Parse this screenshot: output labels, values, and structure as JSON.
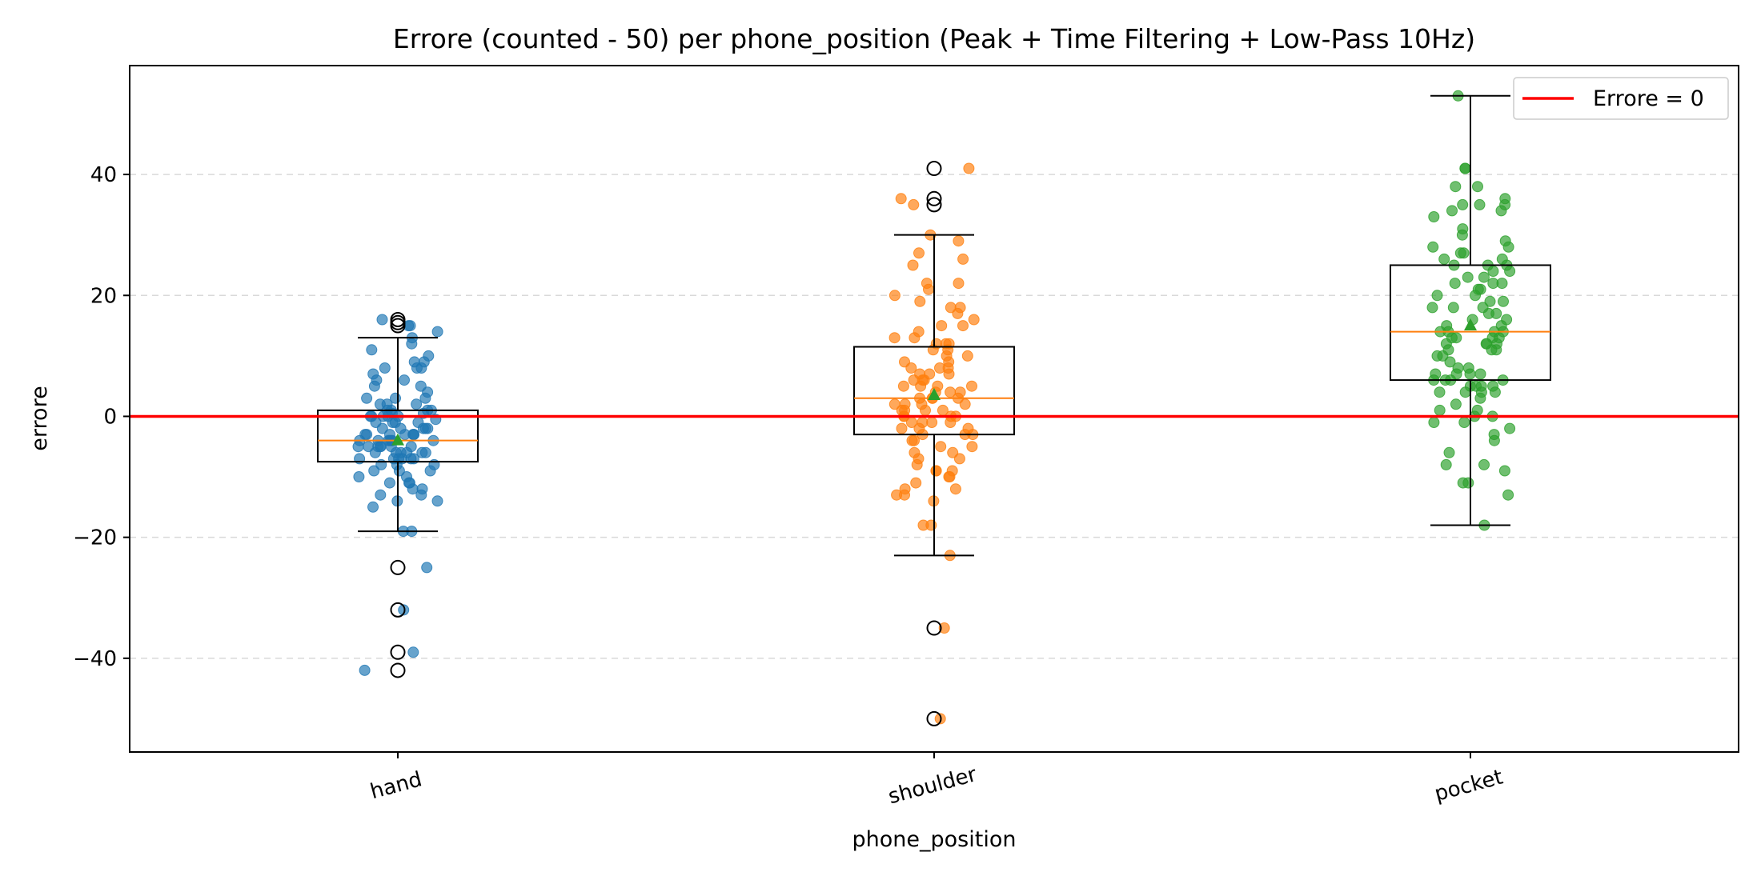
{
  "chart_data": {
    "type": "box",
    "title": "Errore (counted - 50) per phone_position (Peak + Time Filtering + Low-Pass 10Hz)",
    "xlabel": "phone_position",
    "ylabel": "errore",
    "ylim": [
      -55.5,
      58
    ],
    "yticks": [
      -40,
      -20,
      0,
      20,
      40
    ],
    "yticklabels": [
      "−40",
      "−20",
      "0",
      "20",
      "40"
    ],
    "xticklabel_rotation_deg": -15,
    "grid": "y, dashed, light gray",
    "legend": {
      "placement": "top-right",
      "entries": [
        {
          "label": "Errore = 0",
          "color": "#ff0000"
        }
      ]
    },
    "reference_line": {
      "y": 0,
      "color": "#ff0000",
      "label": "Errore = 0"
    },
    "categories": [
      "hand",
      "shoulder",
      "pocket"
    ],
    "series": [
      {
        "name": "hand",
        "color": "#1f77b4",
        "box": {
          "whisker_low": -19,
          "q1": -7.5,
          "median": -4,
          "q3": 1,
          "whisker_high": 13,
          "mean": -4
        },
        "outliers": [
          16,
          15,
          15.5,
          -25,
          -32,
          -39,
          -42
        ],
        "points": [
          15,
          16,
          15,
          14,
          13,
          12,
          11,
          10,
          9,
          9,
          8,
          8,
          8,
          7,
          6,
          6,
          5,
          5,
          4,
          3,
          3,
          3,
          2,
          2,
          2,
          1,
          1,
          1,
          1,
          0.5,
          0.5,
          0,
          0,
          0,
          0,
          0,
          -0.5,
          -1,
          -1,
          -1,
          -1,
          -2,
          -2,
          -2,
          -2,
          -2,
          -3,
          -3,
          -3,
          -3,
          -3,
          -3,
          -3,
          -4,
          -4,
          -4,
          -4,
          -4,
          -4,
          -4,
          -5,
          -5,
          -5,
          -5,
          -5,
          -5,
          -5,
          -6,
          -6,
          -6,
          -6,
          -6,
          -6,
          -7,
          -7,
          -7,
          -7,
          -7,
          -7,
          -8,
          -8,
          -8,
          -9,
          -9,
          -9,
          -10,
          -10,
          -11,
          -11,
          -11,
          -12,
          -12,
          -13,
          -13,
          -14,
          -14,
          -15,
          -19,
          -19,
          -25,
          -32,
          -39,
          -42
        ]
      },
      {
        "name": "shoulder",
        "color": "#ff7f0e",
        "box": {
          "whisker_low": -23,
          "q1": -3,
          "median": 3,
          "q3": 11.5,
          "whisker_high": 30,
          "mean": 3.5
        },
        "outliers": [
          41,
          36,
          35,
          -35,
          -50
        ],
        "points": [
          41,
          36,
          35,
          30,
          29,
          27,
          26,
          25,
          22,
          22,
          21,
          20,
          19,
          18,
          18,
          17,
          16,
          15,
          15,
          14,
          13,
          13,
          12,
          12,
          12,
          11,
          11,
          10,
          10,
          9,
          9,
          8,
          8,
          8,
          7,
          7,
          7,
          6,
          6,
          6,
          5,
          5,
          5,
          5,
          4,
          4,
          4,
          3,
          3,
          3,
          3,
          2,
          2,
          2,
          2,
          1,
          1,
          1,
          1,
          0,
          0,
          0,
          0,
          -1,
          -1,
          -1,
          -1,
          -2,
          -2,
          -2,
          -3,
          -3,
          -3,
          -4,
          -4,
          -5,
          -5,
          -6,
          -6,
          -7,
          -7,
          -8,
          -9,
          -9,
          -9,
          -10,
          -10,
          -11,
          -12,
          -12,
          -13,
          -13,
          -14,
          -18,
          -18,
          -23,
          -35,
          -50
        ]
      },
      {
        "name": "pocket",
        "color": "#2ca02c",
        "box": {
          "whisker_low": -18,
          "q1": 6,
          "median": 14,
          "q3": 25,
          "whisker_high": 53,
          "mean": 15
        },
        "outliers": [],
        "points": [
          53,
          41,
          41,
          38,
          38,
          36,
          35,
          35,
          35,
          34,
          34,
          33,
          31,
          30,
          29,
          28,
          28,
          27,
          27,
          26,
          26,
          25,
          25,
          25,
          24,
          24,
          23,
          23,
          22,
          22,
          22,
          21,
          21,
          20,
          20,
          19,
          19,
          18,
          18,
          18,
          17,
          17,
          16,
          16,
          15,
          15,
          14,
          14,
          14,
          14,
          13,
          13,
          13,
          13,
          12,
          12,
          12,
          12,
          11,
          11,
          11,
          10,
          10,
          9,
          8,
          8,
          7,
          7,
          7,
          7,
          6,
          6,
          6,
          6,
          5,
          5,
          5,
          5,
          4,
          4,
          4,
          4,
          3,
          2,
          1,
          1,
          0,
          0,
          -1,
          -1,
          -2,
          -3,
          -4,
          -6,
          -8,
          -8,
          -9,
          -11,
          -11,
          -13,
          -18
        ]
      }
    ]
  }
}
